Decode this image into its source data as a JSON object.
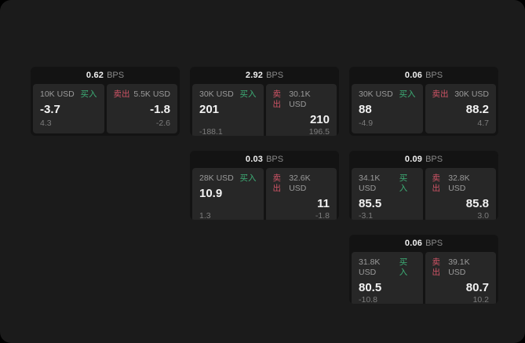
{
  "labels": {
    "bps_unit": "BPS",
    "buy": "买入",
    "sell": "卖出"
  },
  "colors": {
    "page_bg": "#1b1b1b",
    "card_bg": "#131313",
    "panel_bg": "#272727",
    "buy_green": "#3dae76",
    "sell_red": "#cf5466"
  },
  "cards": [
    {
      "bps": "0.62",
      "buy": {
        "amount": "10K USD",
        "value": "-3.7",
        "sub": "4.3"
      },
      "sell": {
        "amount": "5.5K USD",
        "value": "-1.8",
        "sub": "-2.6"
      }
    },
    {
      "bps": "2.92",
      "buy": {
        "amount": "30K USD",
        "value": "201",
        "sub": "-188.1"
      },
      "sell": {
        "amount": "30.1K USD",
        "value": "210",
        "sub": "196.5"
      }
    },
    {
      "bps": "0.06",
      "buy": {
        "amount": "30K USD",
        "value": "88",
        "sub": "-4.9"
      },
      "sell": {
        "amount": "30K USD",
        "value": "88.2",
        "sub": "4.7"
      }
    },
    {
      "bps": "0.03",
      "buy": {
        "amount": "28K USD",
        "value": "10.9",
        "sub": "1.3"
      },
      "sell": {
        "amount": "32.6K USD",
        "value": "11",
        "sub": "-1.8"
      }
    },
    {
      "bps": "0.09",
      "buy": {
        "amount": "34.1K USD",
        "value": "85.5",
        "sub": "-3.1"
      },
      "sell": {
        "amount": "32.8K USD",
        "value": "85.8",
        "sub": "3.0"
      }
    },
    {
      "bps": "0.06",
      "buy": {
        "amount": "31.8K USD",
        "value": "80.5",
        "sub": "-10.8"
      },
      "sell": {
        "amount": "39.1K USD",
        "value": "80.7",
        "sub": "10.2"
      }
    }
  ]
}
